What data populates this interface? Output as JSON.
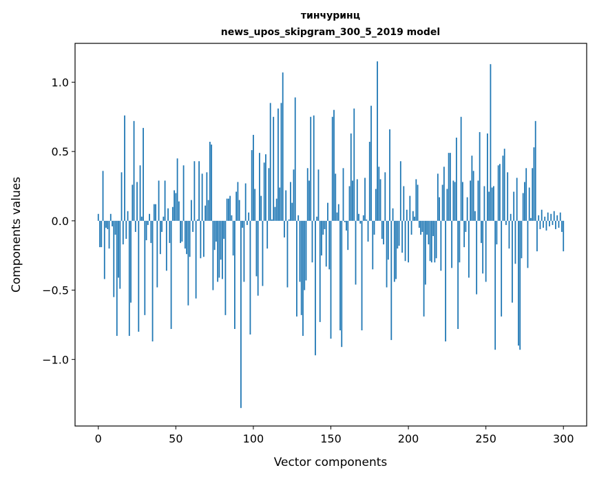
{
  "chart_data": {
    "type": "bar",
    "title": "тинчуринц",
    "subtitle": "news_upos_skipgram_300_5_2019 model",
    "xlabel": "Vector components",
    "ylabel": "Components values",
    "xlim": [
      -15,
      315
    ],
    "ylim": [
      -1.48,
      1.28
    ],
    "xticks": [
      0,
      50,
      100,
      150,
      200,
      250,
      300
    ],
    "xtick_labels": [
      "0",
      "50",
      "100",
      "150",
      "200",
      "250",
      "300"
    ],
    "yticks": [
      -1.0,
      -0.5,
      0.0,
      0.5,
      1.0
    ],
    "ytick_labels": [
      "−1.0",
      "−0.5",
      "0.0",
      "0.5",
      "1.0"
    ],
    "color": "#1f77b4",
    "grid": false,
    "values": [
      0.05,
      -0.19,
      -0.19,
      0.36,
      -0.42,
      -0.05,
      -0.06,
      -0.2,
      0.05,
      -0.04,
      -0.55,
      -0.1,
      -0.83,
      -0.41,
      -0.49,
      0.35,
      -0.17,
      0.76,
      -0.13,
      0.07,
      -0.83,
      -0.59,
      0.26,
      0.72,
      -0.08,
      0.28,
      -0.8,
      0.4,
      0.03,
      0.67,
      -0.68,
      -0.14,
      -0.03,
      0.05,
      -0.16,
      -0.87,
      0.12,
      0.12,
      -0.48,
      0.29,
      -0.24,
      -0.08,
      0.03,
      0.29,
      -0.36,
      0.09,
      -0.16,
      -0.78,
      0.1,
      0.22,
      0.2,
      0.45,
      0.14,
      -0.16,
      -0.15,
      0.4,
      -0.2,
      -0.24,
      -0.61,
      -0.26,
      0.15,
      -0.08,
      0.43,
      -0.56,
      0.01,
      0.43,
      -0.27,
      0.34,
      -0.26,
      0.11,
      0.35,
      0.15,
      0.57,
      0.55,
      -0.5,
      -0.21,
      -0.15,
      -0.44,
      -0.41,
      -0.28,
      -0.42,
      -0.13,
      -0.68,
      0.16,
      0.16,
      0.18,
      0.04,
      -0.25,
      -0.78,
      0.21,
      0.28,
      0.15,
      -1.35,
      -0.05,
      -0.44,
      0.27,
      -0.03,
      0.06,
      -0.82,
      0.51,
      0.62,
      0.23,
      -0.4,
      -0.54,
      0.49,
      0.18,
      -0.47,
      0.42,
      0.48,
      -0.2,
      0.38,
      0.85,
      0.01,
      0.75,
      0.1,
      0.16,
      0.81,
      0.24,
      0.85,
      1.07,
      -0.12,
      0.22,
      -0.48,
      0.01,
      0.28,
      0.13,
      0.37,
      0.89,
      -0.69,
      0.04,
      -0.44,
      -0.68,
      -0.83,
      -0.5,
      -0.43,
      0.38,
      0.29,
      0.75,
      -0.3,
      0.76,
      -0.97,
      0.03,
      0.37,
      -0.73,
      -0.25,
      -0.1,
      -0.06,
      -0.33,
      0.13,
      -0.35,
      -0.85,
      0.75,
      0.8,
      0.34,
      0.06,
      0.12,
      -0.79,
      -0.91,
      0.38,
      -0.01,
      -0.07,
      -0.21,
      0.25,
      0.63,
      0.29,
      0.81,
      -0.46,
      0.3,
      0.05,
      -0.02,
      -0.79,
      0.04,
      0.31,
      0.01,
      -0.15,
      0.57,
      0.83,
      -0.35,
      -0.1,
      0.23,
      1.15,
      0.39,
      0.3,
      -0.13,
      -0.17,
      0.35,
      -0.48,
      -0.28,
      0.66,
      -0.86,
      0.09,
      -0.44,
      -0.42,
      -0.2,
      -0.18,
      0.43,
      -0.23,
      0.25,
      -0.29,
      0.08,
      -0.3,
      0.18,
      -0.1,
      0.07,
      0.03,
      0.3,
      0.26,
      -0.05,
      -0.1,
      -0.08,
      -0.69,
      -0.46,
      -0.1,
      -0.17,
      -0.29,
      -0.3,
      -0.11,
      -0.3,
      -0.27,
      0.34,
      0.17,
      -0.36,
      0.26,
      0.39,
      -0.87,
      0.23,
      0.49,
      0.49,
      -0.34,
      0.29,
      0.28,
      0.6,
      -0.78,
      -0.3,
      0.75,
      0.28,
      -0.19,
      -0.08,
      0.17,
      -0.41,
      0.29,
      0.47,
      0.36,
      0.07,
      -0.53,
      0.29,
      0.64,
      -0.16,
      -0.38,
      0.25,
      -0.44,
      0.63,
      0.21,
      1.13,
      0.24,
      0.25,
      -0.93,
      -0.17,
      0.4,
      0.41,
      -0.69,
      0.47,
      0.52,
      -0.03,
      0.35,
      -0.2,
      0.05,
      -0.59,
      0.21,
      -0.31,
      0.31,
      -0.9,
      -0.93,
      -0.27,
      0.2,
      0.28,
      0.38,
      -0.34,
      0.24,
      0.02,
      0.38,
      0.53,
      0.72,
      -0.22,
      0.04,
      -0.06,
      0.08,
      -0.05,
      0.03,
      -0.07,
      0.06,
      -0.04,
      0.05,
      -0.03,
      0.07,
      -0.06,
      0.04,
      -0.05,
      0.06,
      -0.08,
      -0.22
    ]
  }
}
